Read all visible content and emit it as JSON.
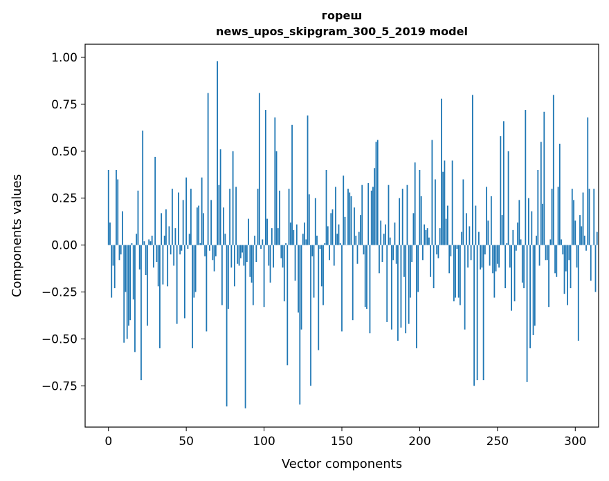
{
  "chart_data": {
    "type": "bar",
    "title_line1": "гореш",
    "title_line2": "news_upos_skipgram_300_5_2019 model",
    "xlabel": "Vector components",
    "ylabel": "Components values",
    "xlim": [
      -15,
      315
    ],
    "ylim": [
      -0.97,
      1.07
    ],
    "xticks": [
      0,
      50,
      100,
      150,
      200,
      250,
      300
    ],
    "xtick_labels": [
      "0",
      "50",
      "100",
      "150",
      "200",
      "250",
      "300"
    ],
    "yticks": [
      -0.75,
      -0.5,
      -0.25,
      0.0,
      0.25,
      0.5,
      0.75,
      1.0
    ],
    "ytick_labels": [
      "−0.75",
      "−0.50",
      "−0.25",
      "0.00",
      "0.25",
      "0.50",
      "0.75",
      "1.00"
    ],
    "bar_color": "#1f77b4",
    "values": [
      0.4,
      0.12,
      -0.28,
      -0.11,
      -0.23,
      0.4,
      0.35,
      -0.08,
      -0.05,
      0.18,
      -0.52,
      -0.25,
      -0.5,
      -0.43,
      -0.4,
      0.01,
      -0.29,
      -0.57,
      0.06,
      0.29,
      -0.13,
      -0.72,
      0.61,
      0.02,
      -0.16,
      -0.43,
      0.03,
      0.02,
      0.05,
      -0.12,
      0.47,
      -0.09,
      -0.22,
      -0.55,
      0.17,
      -0.21,
      0.05,
      0.19,
      -0.22,
      0.1,
      -0.05,
      0.3,
      -0.11,
      0.09,
      -0.42,
      0.28,
      -0.05,
      -0.03,
      0.24,
      -0.39,
      0.36,
      -0.02,
      0.06,
      0.3,
      -0.55,
      -0.28,
      -0.25,
      0.2,
      0.21,
      0.01,
      0.36,
      0.17,
      -0.06,
      -0.46,
      0.81,
      -0.03,
      0.24,
      -0.08,
      -0.14,
      -0.06,
      0.98,
      0.32,
      0.51,
      -0.32,
      0.2,
      0.06,
      -0.86,
      -0.34,
      0.3,
      -0.12,
      0.5,
      -0.22,
      0.31,
      -0.1,
      -0.11,
      -0.07,
      -0.04,
      -0.11,
      -0.87,
      -0.09,
      0.14,
      -0.17,
      -0.2,
      -0.32,
      0.05,
      -0.09,
      0.3,
      0.81,
      -0.02,
      0.03,
      -0.33,
      0.72,
      0.14,
      -0.11,
      -0.2,
      0.09,
      -0.12,
      0.68,
      0.5,
      0.09,
      0.29,
      -0.07,
      -0.12,
      -0.3,
      0.01,
      -0.64,
      0.3,
      0.12,
      0.64,
      0.08,
      -0.19,
      0.11,
      -0.36,
      -0.85,
      -0.45,
      0.06,
      0.12,
      0.03,
      0.69,
      0.27,
      -0.75,
      -0.06,
      -0.28,
      0.25,
      0.05,
      -0.56,
      -0.02,
      -0.22,
      -0.32,
      0.01,
      0.4,
      0.1,
      -0.08,
      0.17,
      0.19,
      -0.11,
      0.31,
      0.06,
      0.11,
      0.01,
      -0.46,
      0.37,
      0.15,
      0.0,
      0.3,
      0.28,
      0.26,
      -0.4,
      0.2,
      0.05,
      -0.1,
      0.07,
      0.16,
      0.32,
      -0.05,
      -0.33,
      -0.34,
      0.33,
      -0.47,
      0.29,
      0.31,
      0.41,
      0.55,
      0.56,
      -0.15,
      0.13,
      -0.09,
      0.06,
      0.11,
      -0.41,
      0.32,
      0.04,
      -0.45,
      -0.08,
      0.12,
      -0.1,
      -0.51,
      0.25,
      -0.44,
      0.3,
      -0.17,
      -0.47,
      0.32,
      -0.42,
      -0.28,
      -0.09,
      0.17,
      0.44,
      -0.55,
      -0.25,
      0.4,
      0.26,
      -0.08,
      0.11,
      0.08,
      0.09,
      0.04,
      -0.17,
      0.56,
      -0.23,
      0.35,
      -0.05,
      -0.07,
      0.09,
      0.78,
      0.39,
      0.45,
      0.14,
      0.21,
      -0.15,
      -0.06,
      0.45,
      -0.3,
      -0.28,
      -0.02,
      -0.28,
      -0.32,
      0.07,
      0.35,
      -0.45,
      0.17,
      -0.12,
      0.1,
      -0.08,
      0.8,
      -0.75,
      0.21,
      -0.72,
      0.07,
      -0.13,
      -0.12,
      -0.72,
      -0.05,
      0.31,
      0.13,
      -0.11,
      0.26,
      -0.15,
      -0.28,
      -0.14,
      -0.1,
      -0.12,
      0.58,
      0.16,
      0.66,
      -0.23,
      0.01,
      0.5,
      -0.12,
      -0.35,
      0.08,
      -0.3,
      -0.03,
      0.12,
      0.24,
      0.03,
      -0.2,
      -0.23,
      0.72,
      -0.73,
      0.25,
      -0.55,
      0.18,
      -0.48,
      -0.43,
      0.05,
      0.4,
      -0.11,
      0.55,
      0.22,
      0.71,
      -0.08,
      -0.08,
      -0.33,
      0.03,
      0.3,
      0.8,
      -0.15,
      -0.17,
      0.31,
      0.54,
      0.03,
      -0.05,
      -0.26,
      -0.14,
      -0.32,
      -0.08,
      -0.23,
      0.3,
      0.24,
      0.13,
      -0.12,
      -0.51,
      0.16,
      0.1,
      0.28,
      0.05,
      -0.03,
      0.68,
      0.3,
      -0.19,
      0.0,
      0.3,
      -0.25,
      0.07
    ]
  }
}
